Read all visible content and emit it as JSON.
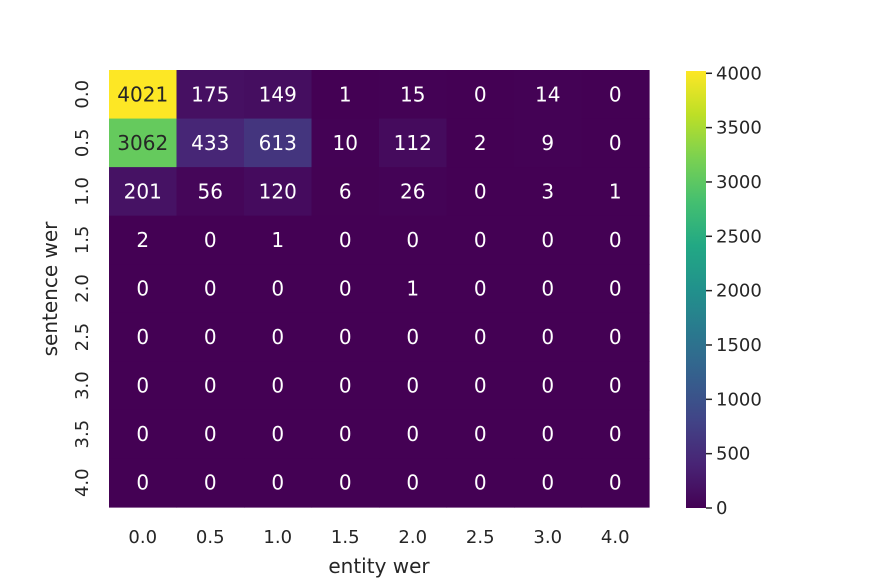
{
  "chart_data": {
    "type": "heatmap",
    "xlabel": "entity wer",
    "ylabel": "sentence wer",
    "x_ticks": [
      "0.0",
      "0.5",
      "1.0",
      "1.5",
      "2.0",
      "2.5",
      "3.0",
      "4.0"
    ],
    "y_ticks": [
      "0.0",
      "0.5",
      "1.0",
      "1.5",
      "2.0",
      "2.5",
      "3.0",
      "3.5",
      "4.0"
    ],
    "values": [
      [
        4021,
        175,
        149,
        1,
        15,
        0,
        14,
        0
      ],
      [
        3062,
        433,
        613,
        10,
        112,
        2,
        9,
        0
      ],
      [
        201,
        56,
        120,
        6,
        26,
        0,
        3,
        1
      ],
      [
        2,
        0,
        1,
        0,
        0,
        0,
        0,
        0
      ],
      [
        0,
        0,
        0,
        0,
        1,
        0,
        0,
        0
      ],
      [
        0,
        0,
        0,
        0,
        0,
        0,
        0,
        0
      ],
      [
        0,
        0,
        0,
        0,
        0,
        0,
        0,
        0
      ],
      [
        0,
        0,
        0,
        0,
        0,
        0,
        0,
        0
      ],
      [
        0,
        0,
        0,
        0,
        0,
        0,
        0,
        0
      ]
    ],
    "colormap": "viridis",
    "color_range": [
      0,
      4021
    ],
    "colorbar_ticks": [
      "0",
      "500",
      "1000",
      "1500",
      "2000",
      "2500",
      "3000",
      "3500",
      "4000"
    ],
    "annotations": true
  }
}
